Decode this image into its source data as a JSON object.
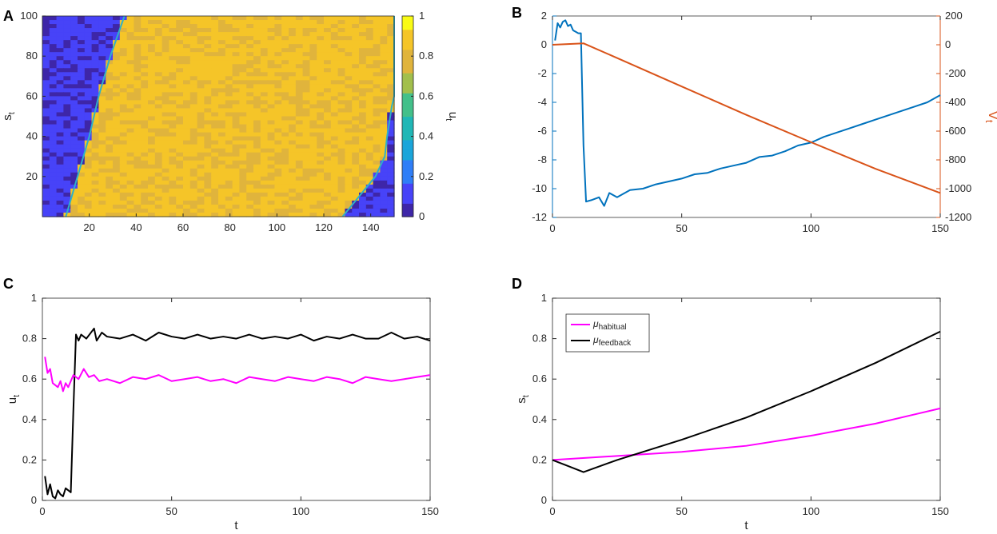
{
  "figure": {
    "panels": [
      {
        "id": "A",
        "label": "A"
      },
      {
        "id": "B",
        "label": "B"
      },
      {
        "id": "C",
        "label": "C"
      },
      {
        "id": "D",
        "label": "D"
      }
    ]
  },
  "chart_data": [
    {
      "panel": "A",
      "type": "heatmap",
      "title": "",
      "xlabel": "",
      "ylabel_main": "s",
      "ylabel_sub": "t",
      "xlim": [
        0,
        150
      ],
      "ylim": [
        0,
        100
      ],
      "xticks": [
        20,
        40,
        60,
        80,
        100,
        120,
        140
      ],
      "yticks": [
        20,
        40,
        60,
        80,
        100
      ],
      "colorbar": {
        "label_main": "u",
        "label_sub": "t",
        "range": [
          0,
          1
        ],
        "ticks": [
          0,
          0.2,
          0.4,
          0.6,
          0.8,
          1
        ],
        "tick_labels": [
          "0",
          "0.2",
          "0.4",
          "0.6",
          "0.8",
          "1"
        ],
        "colormap": [
          "#3e26a8",
          "#4743f8",
          "#2f7ef7",
          "#1ba5da",
          "#20b7b6",
          "#43c08a",
          "#a2bf4c",
          "#e0b43c",
          "#f5c528",
          "#f9fb15"
        ]
      },
      "regions": {
        "left_boundary": [
          [
            0,
            10
          ],
          [
            20,
            15
          ],
          [
            40,
            20
          ],
          [
            60,
            24
          ],
          [
            80,
            29
          ],
          [
            100,
            35
          ]
        ],
        "right_boundary": [
          [
            0,
            128
          ],
          [
            10,
            135
          ],
          [
            20,
            142
          ],
          [
            30,
            146
          ],
          [
            40,
            147
          ],
          [
            55,
            149
          ],
          [
            60,
            150
          ],
          [
            100,
            150
          ]
        ],
        "inside_value": 0.85,
        "outside_value": 0.05
      }
    },
    {
      "panel": "B",
      "type": "line",
      "xlim": [
        0,
        150
      ],
      "xticks": [
        0,
        50,
        100,
        150
      ],
      "left_axis": {
        "ylim": [
          -12,
          2
        ],
        "ticks": [
          -12,
          -10,
          -8,
          -6,
          -4,
          -2,
          0,
          2
        ],
        "color": "#0072bd"
      },
      "right_axis": {
        "ylim": [
          -1200,
          200
        ],
        "ticks": [
          -1200,
          -1000,
          -800,
          -600,
          -400,
          -200,
          0,
          200
        ],
        "label_main": "V",
        "label_sub": "t",
        "color": "#d95319"
      },
      "series": [
        {
          "name": "left series",
          "axis": "left",
          "color": "#0072bd",
          "x": [
            1,
            2,
            3,
            4,
            5,
            6,
            7,
            8,
            9,
            10,
            11,
            12,
            13,
            15,
            18,
            20,
            22,
            25,
            30,
            35,
            40,
            45,
            50,
            55,
            60,
            65,
            70,
            75,
            80,
            85,
            90,
            95,
            100,
            105,
            110,
            115,
            120,
            125,
            130,
            135,
            140,
            145,
            150
          ],
          "y": [
            0.3,
            1.5,
            1.2,
            1.6,
            1.7,
            1.3,
            1.4,
            1.0,
            0.9,
            0.8,
            0.8,
            -7.0,
            -10.9,
            -10.8,
            -10.6,
            -11.2,
            -10.3,
            -10.6,
            -10.1,
            -10.0,
            -9.7,
            -9.5,
            -9.3,
            -9.0,
            -8.9,
            -8.6,
            -8.4,
            -8.2,
            -7.8,
            -7.7,
            -7.4,
            -7.0,
            -6.8,
            -6.4,
            -6.1,
            -5.8,
            -5.5,
            -5.2,
            -4.9,
            -4.6,
            -4.3,
            -4.0,
            -3.5
          ]
        },
        {
          "name": "V_t",
          "axis": "right",
          "color": "#d95319",
          "x": [
            0,
            12,
            25,
            50,
            75,
            100,
            125,
            150
          ],
          "y": [
            0,
            10,
            -92,
            -290,
            -487,
            -677,
            -862,
            -1030
          ]
        }
      ]
    },
    {
      "panel": "C",
      "type": "line",
      "xlabel": "t",
      "ylabel_main": "u",
      "ylabel_sub": "t",
      "xlim": [
        0,
        150
      ],
      "ylim": [
        0,
        1
      ],
      "xticks": [
        0,
        50,
        100,
        150
      ],
      "yticks": [
        0,
        0.2,
        0.4,
        0.6,
        0.8,
        1
      ],
      "series": [
        {
          "name": "black",
          "color": "#000000",
          "x": [
            1,
            2,
            3,
            4,
            5,
            6,
            7,
            8,
            9,
            10,
            11,
            12,
            13,
            14,
            15,
            17,
            20,
            21,
            23,
            25,
            30,
            35,
            40,
            45,
            50,
            55,
            60,
            65,
            70,
            75,
            80,
            85,
            90,
            95,
            100,
            105,
            110,
            115,
            120,
            125,
            130,
            135,
            140,
            145,
            150
          ],
          "y": [
            0.12,
            0.03,
            0.08,
            0.02,
            0.01,
            0.05,
            0.03,
            0.02,
            0.06,
            0.05,
            0.04,
            0.45,
            0.82,
            0.79,
            0.82,
            0.8,
            0.85,
            0.79,
            0.83,
            0.81,
            0.8,
            0.82,
            0.79,
            0.83,
            0.81,
            0.8,
            0.82,
            0.8,
            0.81,
            0.8,
            0.82,
            0.8,
            0.81,
            0.8,
            0.82,
            0.79,
            0.81,
            0.8,
            0.82,
            0.8,
            0.8,
            0.83,
            0.8,
            0.81,
            0.79
          ]
        },
        {
          "name": "magenta",
          "color": "#ff00ff",
          "x": [
            1,
            2,
            3,
            4,
            5,
            6,
            7,
            8,
            9,
            10,
            12,
            14,
            16,
            18,
            20,
            22,
            25,
            30,
            35,
            40,
            45,
            50,
            55,
            60,
            65,
            70,
            75,
            80,
            85,
            90,
            95,
            100,
            105,
            110,
            115,
            120,
            125,
            130,
            135,
            140,
            145,
            150
          ],
          "y": [
            0.71,
            0.63,
            0.65,
            0.58,
            0.57,
            0.56,
            0.59,
            0.54,
            0.58,
            0.56,
            0.62,
            0.6,
            0.65,
            0.61,
            0.62,
            0.59,
            0.6,
            0.58,
            0.61,
            0.6,
            0.62,
            0.59,
            0.6,
            0.61,
            0.59,
            0.6,
            0.58,
            0.61,
            0.6,
            0.59,
            0.61,
            0.6,
            0.59,
            0.61,
            0.6,
            0.58,
            0.61,
            0.6,
            0.59,
            0.6,
            0.61,
            0.62
          ]
        }
      ]
    },
    {
      "panel": "D",
      "type": "line",
      "xlabel": "t",
      "ylabel_main": "s",
      "ylabel_sub": "t",
      "xlim": [
        0,
        150
      ],
      "ylim": [
        0,
        1
      ],
      "xticks": [
        0,
        50,
        100,
        150
      ],
      "yticks": [
        0,
        0.2,
        0.4,
        0.6,
        0.8,
        1
      ],
      "legend_position": "top-left",
      "series": [
        {
          "name": "habitual",
          "legend_main": "μ",
          "legend_sub": "habitual",
          "color": "#ff00ff",
          "x": [
            0,
            25,
            50,
            75,
            100,
            125,
            150
          ],
          "y": [
            0.2,
            0.22,
            0.24,
            0.27,
            0.32,
            0.38,
            0.455
          ]
        },
        {
          "name": "feedback",
          "legend_main": "μ",
          "legend_sub": "feedback",
          "color": "#000000",
          "x": [
            0,
            6,
            12,
            25,
            50,
            75,
            100,
            125,
            150
          ],
          "y": [
            0.2,
            0.17,
            0.14,
            0.2,
            0.3,
            0.41,
            0.54,
            0.68,
            0.835
          ]
        }
      ]
    }
  ]
}
